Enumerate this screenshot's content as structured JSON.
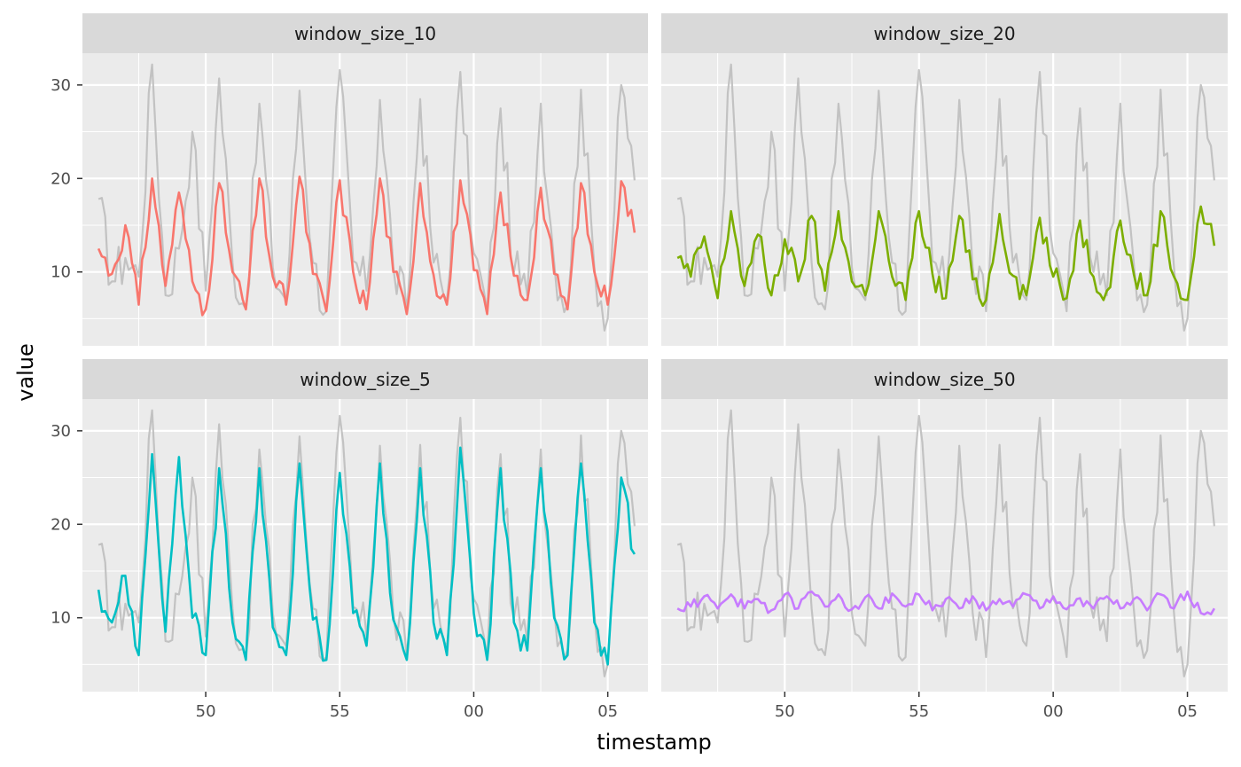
{
  "chart_data": {
    "type": "line",
    "layout": "facet_wrap 2x2",
    "xlabel": "timestamp",
    "ylabel": "value",
    "x_tick_labels": [
      "50",
      "55",
      "00",
      "05"
    ],
    "x_tick_minutes": [
      50,
      55,
      60,
      65
    ],
    "xlim": [
      45.4,
      66.5
    ],
    "data_x_range": [
      46,
      66
    ],
    "y_ticks": [
      10,
      20,
      30
    ],
    "ylim": [
      2.1,
      33.4
    ],
    "grid": true,
    "background": "#ebebeb",
    "grid_color": "#ffffff",
    "raw_color": "#bebebe",
    "raw_series": {
      "name": "value",
      "x_minutes": [
        46.0,
        46.5,
        47.0,
        47.5,
        48.0,
        48.5,
        49.0,
        49.5,
        50.0,
        50.5,
        51.0,
        51.5,
        52.0,
        52.5,
        53.0,
        53.5,
        54.0,
        54.5,
        55.0,
        55.5,
        56.0,
        56.5,
        57.0,
        57.5,
        58.0,
        58.5,
        59.0,
        59.5,
        60.0,
        60.5,
        61.0,
        61.5,
        62.0,
        62.5,
        63.0,
        63.5,
        64.0,
        64.5,
        65.0,
        65.5,
        66.0
      ],
      "values": [
        17.8,
        9.0,
        11.5,
        9.5,
        32.2,
        7.5,
        12.5,
        25.0,
        8.0,
        30.7,
        11.0,
        6.0,
        28.0,
        10.5,
        7.0,
        29.4,
        11.0,
        5.8,
        31.6,
        11.2,
        8.0,
        28.4,
        10.5,
        5.8,
        28.5,
        11.0,
        7.0,
        31.4,
        12.0,
        5.8,
        27.5,
        10.0,
        7.5,
        28.0,
        11.0,
        6.5,
        29.5,
        10.5,
        5.0,
        30.0,
        19.8
      ]
    },
    "facets": [
      {
        "label": "window_size_10",
        "color": "#f8766d",
        "x_minutes": [
          46.0,
          46.5,
          47.0,
          47.5,
          48.0,
          48.5,
          49.0,
          49.5,
          50.0,
          50.5,
          51.0,
          51.5,
          52.0,
          52.5,
          53.0,
          53.5,
          54.0,
          54.5,
          55.0,
          55.5,
          56.0,
          56.5,
          57.0,
          57.5,
          58.0,
          58.5,
          59.0,
          59.5,
          60.0,
          60.5,
          61.0,
          61.5,
          62.0,
          62.5,
          63.0,
          63.5,
          64.0,
          64.5,
          65.0,
          65.5,
          66.0
        ],
        "values": [
          12.5,
          9.8,
          15.0,
          6.5,
          20.0,
          8.5,
          18.5,
          9.0,
          6.0,
          19.5,
          10.0,
          6.0,
          20.0,
          9.5,
          6.5,
          20.2,
          9.8,
          5.8,
          19.8,
          10.0,
          6.0,
          20.0,
          10.0,
          5.5,
          19.5,
          9.7,
          6.5,
          19.8,
          10.2,
          5.5,
          18.5,
          9.6,
          7.0,
          19.0,
          9.8,
          6.0,
          19.5,
          10.0,
          6.5,
          19.7,
          14.2
        ]
      },
      {
        "label": "window_size_20",
        "color": "#7cae00",
        "x_minutes": [
          46.0,
          46.5,
          47.0,
          47.5,
          48.0,
          48.5,
          49.0,
          49.5,
          50.0,
          50.5,
          51.0,
          51.5,
          52.0,
          52.5,
          53.0,
          53.5,
          54.0,
          54.5,
          55.0,
          55.5,
          56.0,
          56.5,
          57.0,
          57.5,
          58.0,
          58.5,
          59.0,
          59.5,
          60.0,
          60.5,
          61.0,
          61.5,
          62.0,
          62.5,
          63.0,
          63.5,
          64.0,
          64.5,
          65.0,
          65.5,
          66.0
        ],
        "values": [
          11.5,
          9.5,
          13.8,
          7.2,
          16.5,
          8.5,
          14.0,
          7.5,
          13.5,
          9.0,
          16.0,
          8.0,
          16.5,
          9.0,
          7.5,
          16.5,
          9.5,
          7.0,
          16.5,
          9.8,
          7.2,
          16.0,
          9.2,
          7.0,
          16.2,
          9.6,
          7.5,
          15.8,
          9.5,
          7.2,
          15.5,
          9.5,
          8.0,
          15.5,
          9.8,
          7.5,
          16.5,
          9.5,
          7.0,
          17.0,
          12.8
        ]
      },
      {
        "label": "window_size_5",
        "color": "#00bfc4",
        "x_minutes": [
          46.0,
          46.5,
          47.0,
          47.5,
          48.0,
          48.5,
          49.0,
          49.5,
          50.0,
          50.5,
          51.0,
          51.5,
          52.0,
          52.5,
          53.0,
          53.5,
          54.0,
          54.5,
          55.0,
          55.5,
          56.0,
          56.5,
          57.0,
          57.5,
          58.0,
          58.5,
          59.0,
          59.5,
          60.0,
          60.5,
          61.0,
          61.5,
          62.0,
          62.5,
          63.0,
          63.5,
          64.0,
          64.5,
          65.0,
          65.5,
          66.0
        ],
        "values": [
          13.0,
          9.5,
          14.5,
          6.0,
          27.5,
          8.5,
          27.2,
          10.0,
          6.0,
          26.0,
          9.5,
          5.5,
          26.0,
          9.0,
          6.0,
          26.5,
          9.8,
          5.5,
          25.5,
          10.5,
          7.0,
          26.5,
          9.8,
          5.5,
          26.0,
          9.5,
          6.0,
          28.2,
          10.5,
          5.5,
          26.0,
          9.5,
          6.5,
          26.0,
          10.0,
          6.0,
          26.5,
          9.5,
          5.0,
          25.0,
          16.8
        ]
      },
      {
        "label": "window_size_50",
        "color": "#c77cff",
        "x_minutes": [
          46.0,
          46.5,
          47.0,
          47.5,
          48.0,
          48.5,
          49.0,
          49.5,
          50.0,
          50.5,
          51.0,
          51.5,
          52.0,
          52.5,
          53.0,
          53.5,
          54.0,
          54.5,
          55.0,
          55.5,
          56.0,
          56.5,
          57.0,
          57.5,
          58.0,
          58.5,
          59.0,
          59.5,
          60.0,
          60.5,
          61.0,
          61.5,
          62.0,
          62.5,
          63.0,
          63.5,
          64.0,
          64.5,
          65.0,
          65.5,
          66.0
        ],
        "values": [
          11.0,
          11.2,
          12.3,
          11.0,
          12.5,
          11.0,
          12.0,
          10.8,
          12.5,
          11.0,
          12.8,
          11.2,
          12.5,
          10.9,
          12.2,
          11.0,
          12.6,
          11.2,
          12.5,
          10.8,
          12.0,
          11.0,
          12.3,
          10.8,
          12.0,
          11.2,
          12.5,
          11.0,
          12.3,
          10.9,
          12.1,
          11.0,
          12.3,
          11.0,
          12.0,
          10.8,
          12.5,
          11.0,
          12.8,
          10.5,
          11.0
        ]
      }
    ]
  }
}
